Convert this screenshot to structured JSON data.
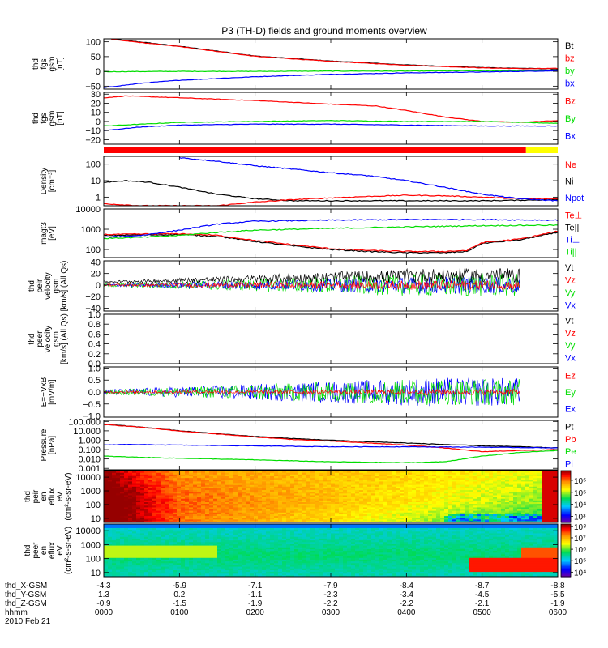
{
  "title": "P3 (TH-D) fields and ground moments overview",
  "colors": {
    "black": "#000000",
    "red": "#ff0000",
    "green": "#00dd00",
    "blue": "#0000ff",
    "yellow": "#ffff00"
  },
  "footer": {
    "row_labels": [
      "thd_X-GSM",
      "thd_Y-GSM",
      "thd_Z-GSM",
      "hhmm",
      "2010 Feb 21"
    ],
    "columns": [
      {
        "x": "-4.3",
        "y": "1.3",
        "z": "-0.9",
        "t": "0000"
      },
      {
        "x": "-5.9",
        "y": "0.2",
        "z": "-1.5",
        "t": "0100"
      },
      {
        "x": "-7.1",
        "y": "-1.1",
        "z": "-1.9",
        "t": "0200"
      },
      {
        "x": "-7.9",
        "y": "-2.3",
        "z": "-2.2",
        "t": "0300"
      },
      {
        "x": "-8.4",
        "y": "-3.4",
        "z": "-2.2",
        "t": "0400"
      },
      {
        "x": "-8.7",
        "y": "-4.5",
        "z": "-2.1",
        "t": "0500"
      },
      {
        "x": "-8.8",
        "y": "-5.5",
        "z": "-1.9",
        "t": "0600"
      }
    ]
  },
  "chart_data": [
    {
      "type": "line",
      "ylabel": [
        "thd",
        "fgs",
        "gsm",
        "[nT]"
      ],
      "ylim": [
        -60,
        110
      ],
      "yscale": "linear",
      "ticks": [
        {
          "v": 100,
          "label": "100"
        },
        {
          "v": 50,
          "label": "50"
        },
        {
          "v": 0,
          "label": "0"
        },
        {
          "v": -50,
          "label": "−50"
        }
      ],
      "legend": [
        {
          "label": "Bt",
          "color": "black"
        },
        {
          "label": "bz",
          "color": "red"
        },
        {
          "label": "by",
          "color": "green"
        },
        {
          "label": "bx",
          "color": "blue"
        }
      ],
      "series": [
        {
          "name": "Bt",
          "color": "black",
          "t": [
            0.1,
            1.0,
            2.0,
            3.0,
            4.0,
            5.0,
            5.6,
            6.0
          ],
          "v": [
            110,
            85,
            52,
            35,
            22,
            13,
            10,
            8
          ]
        },
        {
          "name": "bz",
          "color": "red",
          "t": [
            0.1,
            1.0,
            2.0,
            3.0,
            4.0,
            5.0,
            5.6,
            6.0
          ],
          "v": [
            108,
            84,
            51,
            34,
            21,
            12,
            9,
            10
          ]
        },
        {
          "name": "by",
          "color": "green",
          "t": [
            0,
            1,
            2,
            3,
            4,
            5,
            6
          ],
          "v": [
            -1,
            0,
            0,
            1,
            1,
            2,
            2
          ]
        },
        {
          "name": "bx",
          "color": "blue",
          "t": [
            0,
            0.5,
            1,
            2,
            3,
            4,
            5,
            6
          ],
          "v": [
            -55,
            -40,
            -30,
            -18,
            -10,
            -5,
            -2,
            2
          ]
        }
      ]
    },
    {
      "type": "line",
      "ylabel": [
        "thd",
        "fgs",
        "gsm",
        "[nT]"
      ],
      "ylim": [
        -25,
        32
      ],
      "yscale": "linear",
      "ticks": [
        {
          "v": 30,
          "label": "30"
        },
        {
          "v": 20,
          "label": "20"
        },
        {
          "v": 10,
          "label": "10"
        },
        {
          "v": 0,
          "label": "0"
        },
        {
          "v": -10,
          "label": "−10"
        },
        {
          "v": -20,
          "label": "−20"
        }
      ],
      "legend": [
        {
          "label": "Bz",
          "color": "red"
        },
        {
          "label": "By",
          "color": "green"
        },
        {
          "label": "Bx",
          "color": "blue"
        }
      ],
      "series": [
        {
          "name": "Bz",
          "color": "red",
          "t": [
            0,
            0.3,
            1,
            2,
            3,
            3.6,
            4,
            4.5,
            5,
            5.5,
            6
          ],
          "v": [
            26,
            28,
            26,
            23,
            19,
            17,
            12,
            5,
            0,
            -1,
            1
          ]
        },
        {
          "name": "By",
          "color": "green",
          "t": [
            0,
            0.5,
            1,
            2,
            3,
            4,
            5,
            6
          ],
          "v": [
            -5,
            -3,
            -1,
            0,
            1,
            0,
            0,
            -2
          ]
        },
        {
          "name": "Bx",
          "color": "blue",
          "t": [
            0,
            0.5,
            1,
            2,
            3,
            4,
            5,
            6
          ],
          "v": [
            -10,
            -6,
            -4,
            -3,
            -3,
            -4,
            -5,
            -5
          ]
        }
      ]
    },
    {
      "type": "line",
      "ylabel": [
        "Density",
        "[cm⁻³]"
      ],
      "ylim": [
        0.3,
        300
      ],
      "yscale": "log",
      "ticks": [
        {
          "v": 100,
          "label": "100"
        },
        {
          "v": 10,
          "label": "10"
        },
        {
          "v": 1,
          "label": "1"
        }
      ],
      "legend": [
        {
          "label": "Ne",
          "color": "red"
        },
        {
          "label": "Ni",
          "color": "black"
        },
        {
          "label": "Npot",
          "color": "blue"
        }
      ],
      "series": [
        {
          "name": "Ni",
          "color": "black",
          "t": [
            0,
            0.3,
            0.6,
            1.0,
            1.5,
            2.0,
            2.5,
            3,
            4,
            5,
            6
          ],
          "v": [
            8,
            10,
            8,
            4,
            1.5,
            0.8,
            0.6,
            0.6,
            0.6,
            0.6,
            0.7
          ]
        },
        {
          "name": "Ne",
          "color": "red",
          "t": [
            0,
            0.5,
            1,
            1.5,
            2,
            2.5,
            3,
            3.5,
            4,
            4.5,
            5,
            5.5,
            6
          ],
          "v": [
            0.4,
            0.3,
            0.3,
            0.3,
            0.5,
            0.7,
            0.9,
            1.1,
            1.3,
            1.2,
            1.0,
            0.8,
            0.8
          ]
        },
        {
          "name": "Npot",
          "color": "blue",
          "t": [
            1.0,
            1.5,
            2,
            2.5,
            3,
            3.5,
            4,
            4.5,
            5,
            5.5,
            6
          ],
          "v": [
            250,
            150,
            80,
            50,
            30,
            20,
            10,
            4,
            1.5,
            0.8,
            0.6
          ]
        }
      ]
    },
    {
      "type": "line",
      "ylabel": [
        "magt3",
        "[eV]"
      ],
      "ylim": [
        40,
        10000
      ],
      "yscale": "log",
      "ticks": [
        {
          "v": 10000,
          "label": "10000"
        },
        {
          "v": 1000,
          "label": "1000"
        },
        {
          "v": 100,
          "label": "100"
        }
      ],
      "legend": [
        {
          "label": "Te⊥",
          "color": "red"
        },
        {
          "label": "Te||",
          "color": "black"
        },
        {
          "label": "Ti⊥",
          "color": "blue"
        },
        {
          "label": "Ti||",
          "color": "green"
        }
      ],
      "series": [
        {
          "name": "Te||",
          "color": "black",
          "t": [
            0,
            1,
            1.5,
            2,
            2.5,
            3,
            3.5,
            4,
            4.5,
            4.8,
            5,
            5.5,
            6
          ],
          "v": [
            500,
            550,
            450,
            250,
            150,
            100,
            80,
            70,
            70,
            80,
            200,
            300,
            700
          ]
        },
        {
          "name": "Te⊥",
          "color": "red",
          "t": [
            0,
            1,
            1.5,
            2,
            2.5,
            3,
            3.5,
            4,
            4.5,
            4.8,
            5,
            5.5,
            6
          ],
          "v": [
            550,
            600,
            500,
            280,
            170,
            110,
            90,
            80,
            80,
            90,
            220,
            330,
            800
          ]
        },
        {
          "name": "Ti⊥",
          "color": "blue",
          "t": [
            0,
            0.5,
            1,
            1.5,
            2,
            3,
            4,
            5,
            6
          ],
          "v": [
            400,
            500,
            900,
            1800,
            2500,
            2800,
            3000,
            3000,
            2800
          ]
        },
        {
          "name": "Ti||",
          "color": "green",
          "t": [
            0,
            0.5,
            1,
            1.5,
            2,
            3,
            4,
            5,
            6
          ],
          "v": [
            350,
            400,
            500,
            700,
            900,
            1100,
            1300,
            1500,
            1600
          ]
        }
      ]
    },
    {
      "type": "line",
      "ylabel": [
        "thd",
        "peir",
        "velocity",
        "gsm",
        "[km/s] (All Qs)"
      ],
      "ylim": [
        -45,
        42
      ],
      "yscale": "linear",
      "ticks": [
        {
          "v": 40,
          "label": "40"
        },
        {
          "v": 20,
          "label": "20"
        },
        {
          "v": 0,
          "label": "0"
        },
        {
          "v": -20,
          "label": "−20"
        },
        {
          "v": -40,
          "label": "−40"
        }
      ],
      "legend": [
        {
          "label": "Vt",
          "color": "black"
        },
        {
          "label": "Vz",
          "color": "red"
        },
        {
          "label": "Vy",
          "color": "green"
        },
        {
          "label": "Vx",
          "color": "blue"
        }
      ],
      "noise": [
        {
          "color": "green",
          "t0": 0,
          "t1": 5.5,
          "base": 0,
          "amp0": 3,
          "amp1": 20
        },
        {
          "color": "blue",
          "t0": 0,
          "t1": 5.5,
          "base": 0,
          "amp0": 2,
          "amp1": 15
        },
        {
          "color": "black",
          "t0": 0,
          "t1": 5.5,
          "base": 4,
          "amp0": 3,
          "amp1": 25,
          "positive": true
        },
        {
          "color": "red",
          "t0": 0,
          "t1": 5.5,
          "base": 0,
          "amp0": 2,
          "amp1": 8
        }
      ]
    },
    {
      "type": "line",
      "ylabel": [
        "thd",
        "peer",
        "velocity",
        "gsm",
        "[km/s] (All Qs)"
      ],
      "ylim": [
        0,
        1.0
      ],
      "yscale": "linear",
      "ticks": [
        {
          "v": 1.0,
          "label": "1.0"
        },
        {
          "v": 0.8,
          "label": "0.8"
        },
        {
          "v": 0.6,
          "label": "0.6"
        },
        {
          "v": 0.4,
          "label": "0.4"
        },
        {
          "v": 0.2,
          "label": "0.2"
        },
        {
          "v": 0.0,
          "label": "0.0"
        }
      ],
      "legend": [
        {
          "label": "Vt",
          "color": "black"
        },
        {
          "label": "Vz",
          "color": "red"
        },
        {
          "label": "Vy",
          "color": "green"
        },
        {
          "label": "Vx",
          "color": "blue"
        }
      ]
    },
    {
      "type": "line",
      "ylabel": [
        "E=−VxB",
        "[mV/m]"
      ],
      "ylim": [
        -1.05,
        1.05
      ],
      "yscale": "linear",
      "ticks": [
        {
          "v": 1.0,
          "label": "1.0"
        },
        {
          "v": 0.5,
          "label": "0.5"
        },
        {
          "v": 0.0,
          "label": "0.0"
        },
        {
          "v": -0.5,
          "label": "−0.5"
        },
        {
          "v": -1.0,
          "label": "−1.0"
        }
      ],
      "legend": [
        {
          "label": "Ez",
          "color": "red"
        },
        {
          "label": "Ey",
          "color": "green"
        },
        {
          "label": "Ex",
          "color": "blue"
        }
      ],
      "noise": [
        {
          "color": "blue",
          "t0": 0,
          "t1": 5.5,
          "base": 0,
          "amp0": 0.1,
          "amp1": 0.6
        },
        {
          "color": "green",
          "t0": 0,
          "t1": 5.5,
          "base": 0,
          "amp0": 0.1,
          "amp1": 0.55
        },
        {
          "color": "red",
          "t0": 0,
          "t1": 5.5,
          "base": 0,
          "amp0": 0.05,
          "amp1": 0.12
        }
      ]
    },
    {
      "type": "line",
      "ylabel": [
        "Pressure",
        "[nPa]"
      ],
      "ylim": [
        0.0007,
        130
      ],
      "yscale": "log",
      "ticks": [
        {
          "v": 100,
          "label": "100.000"
        },
        {
          "v": 10,
          "label": "10.000"
        },
        {
          "v": 1,
          "label": "1.000"
        },
        {
          "v": 0.1,
          "label": "0.100"
        },
        {
          "v": 0.01,
          "label": "0.010"
        },
        {
          "v": 0.001,
          "label": "0.001"
        }
      ],
      "legend": [
        {
          "label": "Pt",
          "color": "black"
        },
        {
          "label": "Pb",
          "color": "red"
        },
        {
          "label": "Pe",
          "color": "green"
        },
        {
          "label": "Pi",
          "color": "blue"
        }
      ],
      "series": [
        {
          "name": "Pt",
          "color": "black",
          "t": [
            0,
            0.5,
            1,
            1.5,
            2,
            2.5,
            3,
            3.5,
            4,
            4.5,
            5,
            5.5,
            6
          ],
          "v": [
            50,
            25,
            10,
            5,
            2.5,
            1.5,
            1.0,
            0.7,
            0.5,
            0.35,
            0.25,
            0.2,
            0.15
          ]
        },
        {
          "name": "Pb",
          "color": "red",
          "t": [
            0,
            0.5,
            1,
            1.5,
            2,
            2.5,
            3,
            3.5,
            4,
            4.5,
            5,
            5.5,
            6
          ],
          "v": [
            48,
            24,
            9.5,
            4.6,
            2.2,
            1.2,
            0.8,
            0.5,
            0.3,
            0.15,
            0.06,
            0.08,
            0.1
          ]
        },
        {
          "name": "Pi",
          "color": "blue",
          "t": [
            0,
            0.3,
            1,
            2,
            3,
            4,
            5,
            6
          ],
          "v": [
            0.3,
            0.35,
            0.3,
            0.25,
            0.2,
            0.2,
            0.18,
            0.15
          ]
        },
        {
          "name": "Pe",
          "color": "green",
          "t": [
            0,
            0.5,
            1,
            2,
            3,
            4,
            4.5,
            5,
            5.5,
            6
          ],
          "v": [
            0.02,
            0.015,
            0.012,
            0.008,
            0.005,
            0.004,
            0.005,
            0.02,
            0.05,
            0.08
          ]
        }
      ]
    },
    {
      "type": "heatmap",
      "ylabel": [
        "thd",
        "peir",
        "en",
        "eflux",
        "eV",
        "(cm²-s-sr-eV)"
      ],
      "ylim": [
        5,
        30000
      ],
      "yscale": "log",
      "ticks": [
        {
          "v": 10000,
          "label": "10000"
        },
        {
          "v": 1000,
          "label": "1000"
        },
        {
          "v": 100,
          "label": "100"
        },
        {
          "v": 10,
          "label": "10"
        }
      ],
      "colorbar_ticks": [
        "10⁶",
        "10⁵",
        "10⁴",
        "10³"
      ],
      "colorbar_range": [
        2.5,
        6.8
      ]
    },
    {
      "type": "heatmap",
      "ylabel": [
        "thd",
        "peer",
        "en",
        "eflux",
        "eV",
        "(cm²-s-sr-eV)"
      ],
      "ylim": [
        5,
        30000
      ],
      "yscale": "log",
      "ticks": [
        {
          "v": 10000,
          "label": "10000"
        },
        {
          "v": 1000,
          "label": "1000"
        },
        {
          "v": 100,
          "label": "100"
        },
        {
          "v": 10,
          "label": "10"
        }
      ],
      "colorbar_ticks": [
        "10⁸",
        "10⁷",
        "10⁶",
        "10⁵",
        "10⁴"
      ],
      "colorbar_range": [
        3.6,
        8.2
      ]
    }
  ]
}
